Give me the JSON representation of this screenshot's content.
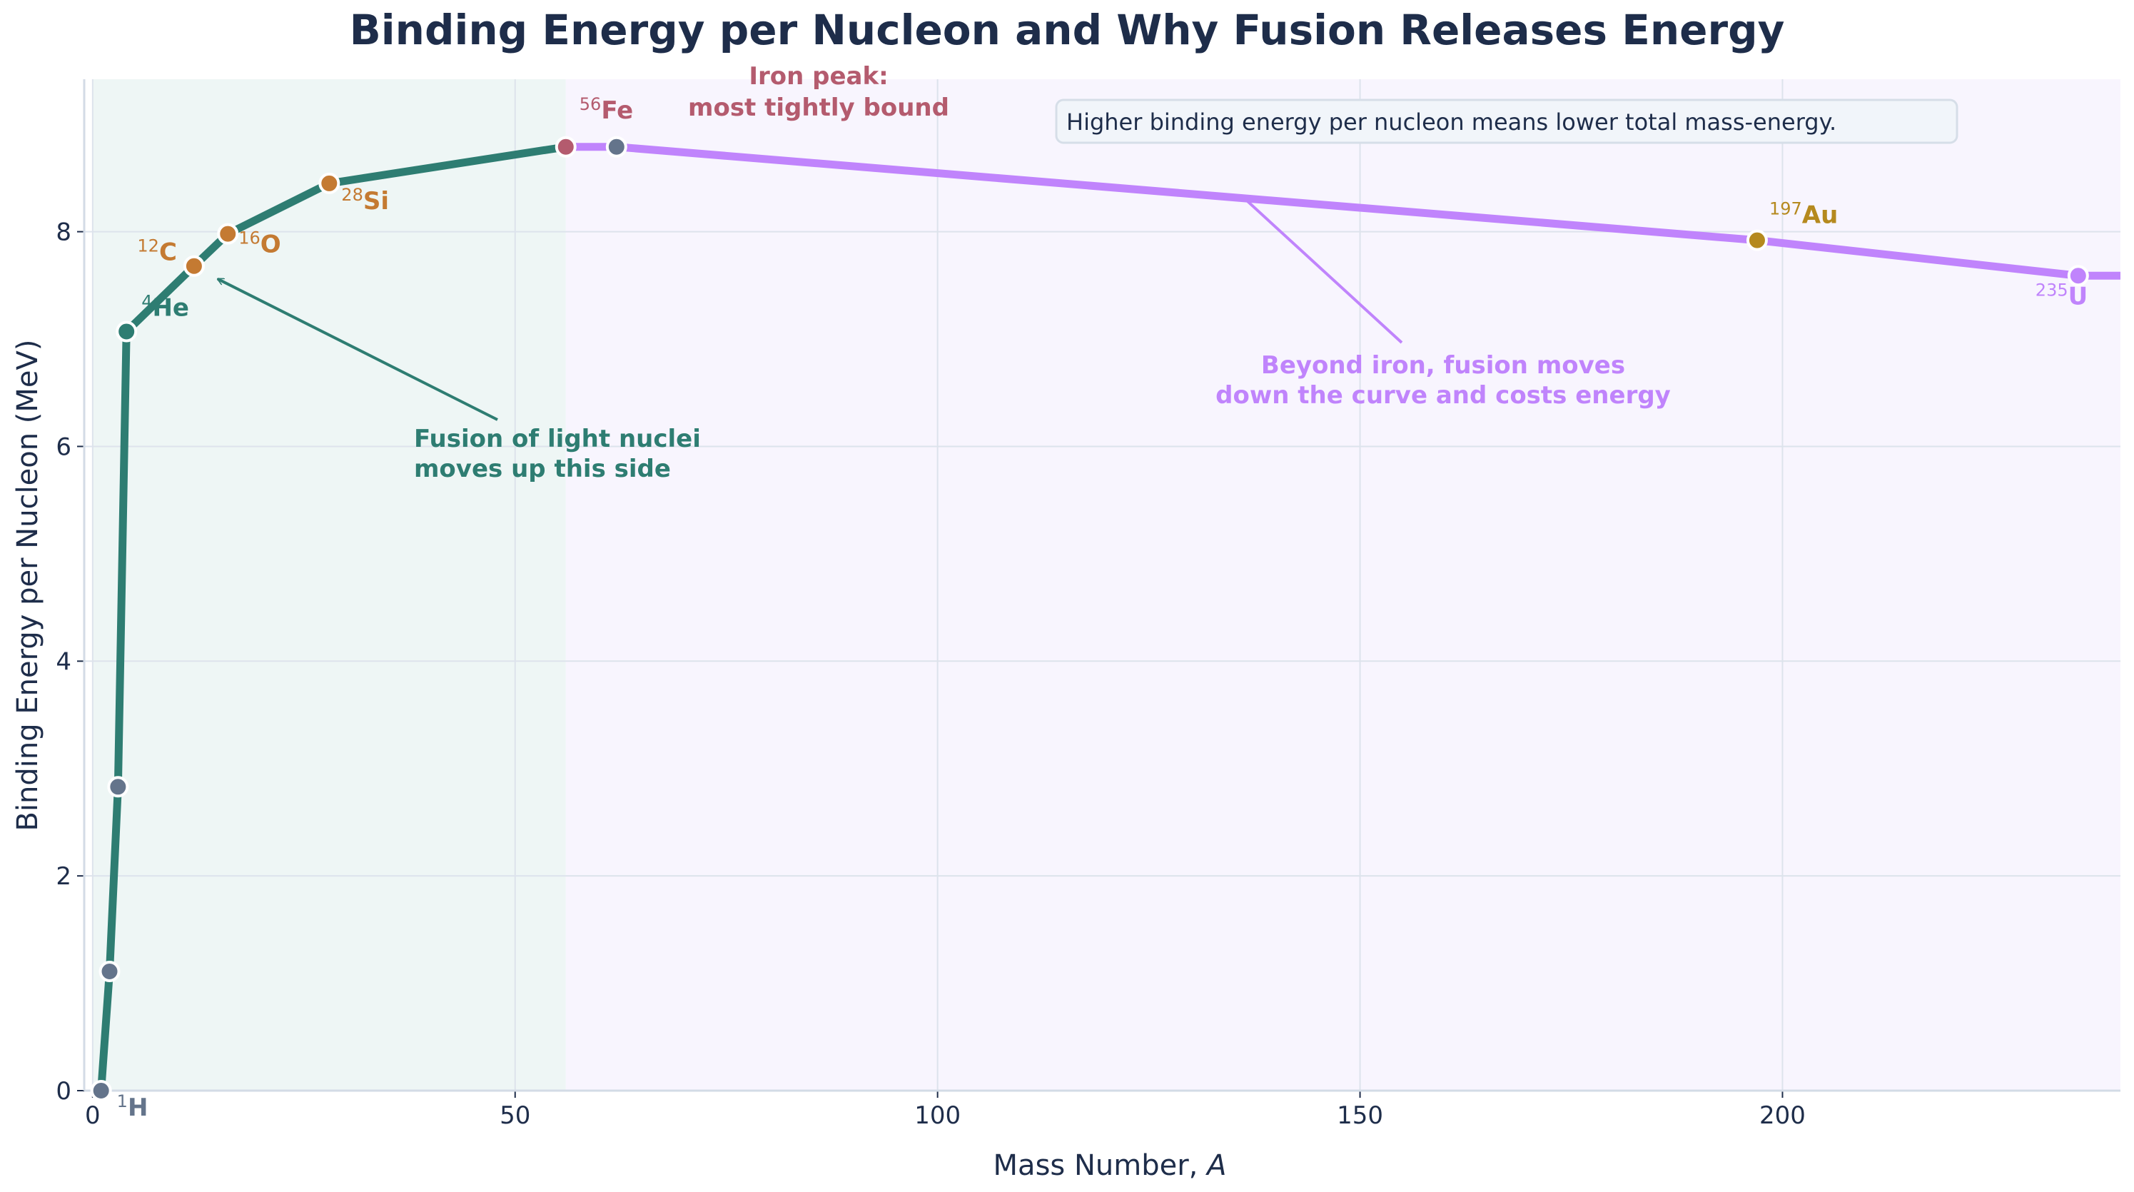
{
  "chart_data": {
    "type": "line",
    "title": "Binding Energy per Nucleon and Why Fusion Releases Energy",
    "xlabel": "Mass Number, ",
    "xlabel_italic": "A",
    "ylabel": "Binding Energy per Nucleon (MeV)",
    "xlim": [
      -1,
      240
    ],
    "ylim": [
      0,
      9.42
    ],
    "grid": true,
    "xticks": [
      "0",
      "50",
      "100",
      "150",
      "200"
    ],
    "xtick_values": [
      0,
      50,
      100,
      150,
      200
    ],
    "yticks": [
      "0",
      "2",
      "4",
      "6",
      "8"
    ],
    "ytick_values": [
      0,
      2,
      4,
      6,
      8
    ],
    "regions": [
      {
        "name": "fusion",
        "from": 0,
        "to": 56,
        "color": "#eef6f5"
      },
      {
        "name": "beyond-iron",
        "from": 56,
        "to": 240,
        "color": "#f8f5fe"
      }
    ],
    "series": [
      {
        "color": "#2e7d72",
        "x": [
          1,
          2,
          3,
          4,
          12,
          16,
          28,
          56
        ],
        "y": [
          0,
          1.11,
          2.83,
          7.07,
          7.68,
          7.98,
          8.45,
          8.79
        ]
      },
      {
        "color": "#c084fc",
        "x": [
          56,
          62,
          197,
          235,
          240
        ],
        "y": [
          8.79,
          8.79,
          7.92,
          7.59,
          7.59
        ]
      }
    ],
    "points": [
      {
        "A": 1,
        "B": 0,
        "mass": "1",
        "symbol": "H",
        "color": "#64748b"
      },
      {
        "A": 2,
        "B": 1.11,
        "color": "#64748b"
      },
      {
        "A": 3,
        "B": 2.83,
        "color": "#64748b"
      },
      {
        "A": 4,
        "B": 7.07,
        "mass": "4",
        "symbol": "He",
        "color": "#2e7d72"
      },
      {
        "A": 12,
        "B": 7.68,
        "mass": "12",
        "symbol": "C",
        "color": "#c47a32"
      },
      {
        "A": 16,
        "B": 7.98,
        "mass": "16",
        "symbol": "O",
        "color": "#c47a32"
      },
      {
        "A": 28,
        "B": 8.45,
        "mass": "28",
        "symbol": "Si",
        "color": "#c47a32"
      },
      {
        "A": 56,
        "B": 8.79,
        "mass": "56",
        "symbol": "Fe",
        "color": "#b45b6e"
      },
      {
        "A": 62,
        "B": 8.79,
        "color": "#64748b"
      },
      {
        "A": 197,
        "B": 7.92,
        "mass": "197",
        "symbol": "Au",
        "color": "#b5891e"
      },
      {
        "A": 235,
        "B": 7.59,
        "mass": "235",
        "symbol": "U",
        "color": "#c084fc"
      }
    ],
    "annotations": {
      "fusion": {
        "lines": [
          "Fusion of light nuclei",
          "moves up this side"
        ],
        "color": "#2e7d72",
        "arrow_to": [
          14.8,
          7.56
        ]
      },
      "beyond": {
        "lines": [
          "Beyond iron, fusion moves",
          "down the curve and costs energy"
        ],
        "color": "#c084fc",
        "arrow_to": [
          135.9,
          8.34
        ]
      },
      "iron": {
        "lines": [
          "Iron peak:",
          "most tightly bound"
        ],
        "color": "#b45b6e"
      },
      "note": "Higher binding energy per nucleon means lower total mass-energy."
    }
  }
}
